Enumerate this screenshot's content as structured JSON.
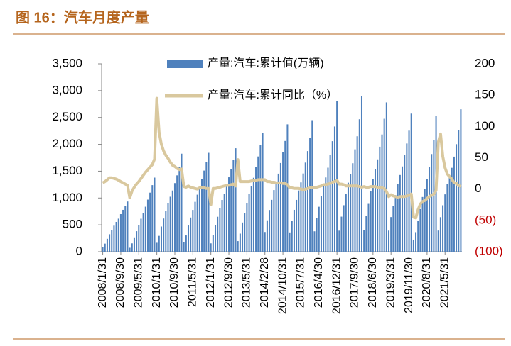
{
  "chart_data": {
    "type": "bar-line",
    "title": "图 16：汽车月度产量",
    "categories": [
      "2008/1/31",
      null,
      null,
      null,
      null,
      null,
      null,
      null,
      "2008/9/30",
      null,
      null,
      null,
      null,
      null,
      null,
      null,
      "2009/5/31",
      null,
      null,
      null,
      null,
      null,
      null,
      null,
      "2010/1/31",
      null,
      null,
      null,
      null,
      null,
      null,
      null,
      "2010/9/30",
      null,
      null,
      null,
      null,
      null,
      null,
      null,
      "2011/5/31",
      null,
      null,
      null,
      null,
      null,
      null,
      null,
      "2012/1/31",
      null,
      null,
      null,
      null,
      null,
      null,
      null,
      "2012/9/30",
      null,
      null,
      null,
      null,
      null,
      null,
      null,
      "2013/5/31",
      null,
      null,
      null,
      null,
      null,
      null,
      null,
      "2014/2/28",
      null,
      null,
      null,
      null,
      null,
      null,
      null,
      "2014/10/31",
      null,
      null,
      null,
      null,
      null,
      null,
      null,
      "2015/7/31",
      null,
      null,
      null,
      null,
      null,
      null,
      null,
      "2016/4/30",
      null,
      null,
      null,
      null,
      null,
      null,
      null,
      "2016/12/31",
      null,
      null,
      null,
      null,
      null,
      null,
      null,
      "2017/9/30",
      null,
      null,
      null,
      null,
      null,
      null,
      null,
      "2018/6/30",
      null,
      null,
      null,
      null,
      null,
      null,
      null,
      "2019/3/31",
      null,
      null,
      null,
      null,
      null,
      null,
      null,
      "2019/11/30",
      null,
      null,
      null,
      null,
      null,
      null,
      null,
      "2020/8/31",
      null,
      null,
      null,
      null,
      null,
      null,
      null,
      "2021/5/31",
      null,
      null,
      null,
      null,
      null,
      null,
      null
    ],
    "series": [
      {
        "name": "产量:汽车:累计值(万辆)",
        "color": "#4f81bd",
        "chart": "bar",
        "values": [
          88,
          150,
          240,
          325,
          405,
          485,
          555,
          615,
          700,
          780,
          850,
          935,
          73,
          155,
          267,
          382,
          494,
          614,
          722,
          838,
          970,
          1100,
          1240,
          1380,
          166,
          295,
          469,
          618,
          766,
          904,
          1024,
          1140,
          1278,
          1422,
          1574,
          1826,
          172,
          303,
          488,
          637,
          778,
          929,
          1062,
          1198,
          1356,
          1511,
          1668,
          1842,
          155,
          305,
          489,
          651,
          810,
          964,
          1083,
          1213,
          1386,
          1545,
          1717,
          1927,
          197,
          337,
          544,
          722,
          898,
          1075,
          1223,
          1377,
          1572,
          1774,
          1981,
          2212,
          367,
          585,
          777,
          966,
          1148,
          1290,
          1454,
          1652,
          1854,
          2063,
          2372,
          359,
          580,
          780,
          965,
          1140,
          1291,
          1457,
          1660,
          1874,
          2122,
          2450,
          380,
          627,
          837,
          1030,
          1222,
          1383,
          1565,
          1807,
          2059,
          2332,
          2812,
          392,
          653,
          866,
          1082,
          1286,
          1445,
          1648,
          1907,
          2150,
          2467,
          2902,
          406,
          669,
          891,
          1125,
          1352,
          1532,
          1720,
          1956,
          2183,
          2476,
          2781,
          393,
          645,
          849,
          1054,
          1267,
          1429,
          1588,
          1803,
          2016,
          2255,
          2572,
          225,
          364,
          574,
          795,
          1019,
          1174,
          1353,
          1583,
          1819,
          2081,
          2523,
          394,
          643,
          865,
          1068,
          1257,
          1405,
          1563,
          1771,
          2003,
          2267,
          2653
        ]
      },
      {
        "name": "产量:汽车:累计同比（%）",
        "color": "#d9c89e",
        "chart": "line",
        "axis": "y2",
        "values": [
          10,
          12,
          15,
          18,
          18,
          17,
          16,
          14,
          12,
          10,
          8,
          6,
          -14,
          -3,
          3,
          8,
          12,
          17,
          22,
          27,
          31,
          35,
          39,
          48,
          145,
          91,
          72,
          61,
          54,
          49,
          43,
          38,
          36,
          33,
          31,
          32,
          4,
          3,
          5,
          3,
          2,
          1,
          0,
          2,
          2,
          2,
          1,
          1,
          -25,
          1,
          1,
          2,
          3,
          4,
          5,
          6,
          6,
          7,
          8,
          5,
          47,
          12,
          12,
          12,
          12,
          12,
          13,
          14,
          14,
          15,
          15,
          15,
          15,
          12,
          12,
          11,
          11,
          10,
          10,
          10,
          9,
          9,
          7,
          2,
          2,
          1,
          1,
          1,
          0,
          -1,
          0,
          1,
          2,
          3,
          3,
          3,
          4,
          5,
          7,
          7,
          8,
          9,
          11,
          12,
          14,
          8,
          8,
          7,
          5,
          5,
          5,
          5,
          5,
          5,
          4,
          3,
          4,
          3,
          3,
          4,
          4,
          4,
          3,
          3,
          2,
          1,
          -4,
          -12,
          -9,
          -11,
          -12,
          -13,
          -12,
          -12,
          -12,
          -11,
          -10,
          -8,
          -45,
          -46,
          -33,
          -24,
          -20,
          -18,
          -15,
          -12,
          -10,
          -8,
          -2,
          75,
          88,
          52,
          34,
          24,
          20,
          16,
          10,
          9,
          6,
          4
        ]
      }
    ],
    "ylim": [
      0,
      3500
    ],
    "yticks": [
      0,
      500,
      {
        "value": 1000,
        "label": "1,000"
      },
      {
        "value": 1500,
        "label": "1,500"
      },
      {
        "value": 2000,
        "label": "2,000"
      },
      {
        "value": 2500,
        "label": "2,500"
      },
      {
        "value": 3000,
        "label": "3,000"
      },
      {
        "value": 3500,
        "label": "3,500"
      }
    ],
    "y2lim": [
      -100,
      200
    ],
    "y2ticks": [
      {
        "value": -100,
        "label": "(100)"
      },
      {
        "value": -50,
        "label": "(50)"
      },
      0,
      50,
      100,
      150,
      200
    ],
    "negative_tick_color": "#c00000",
    "title_color": "#b5651d"
  }
}
